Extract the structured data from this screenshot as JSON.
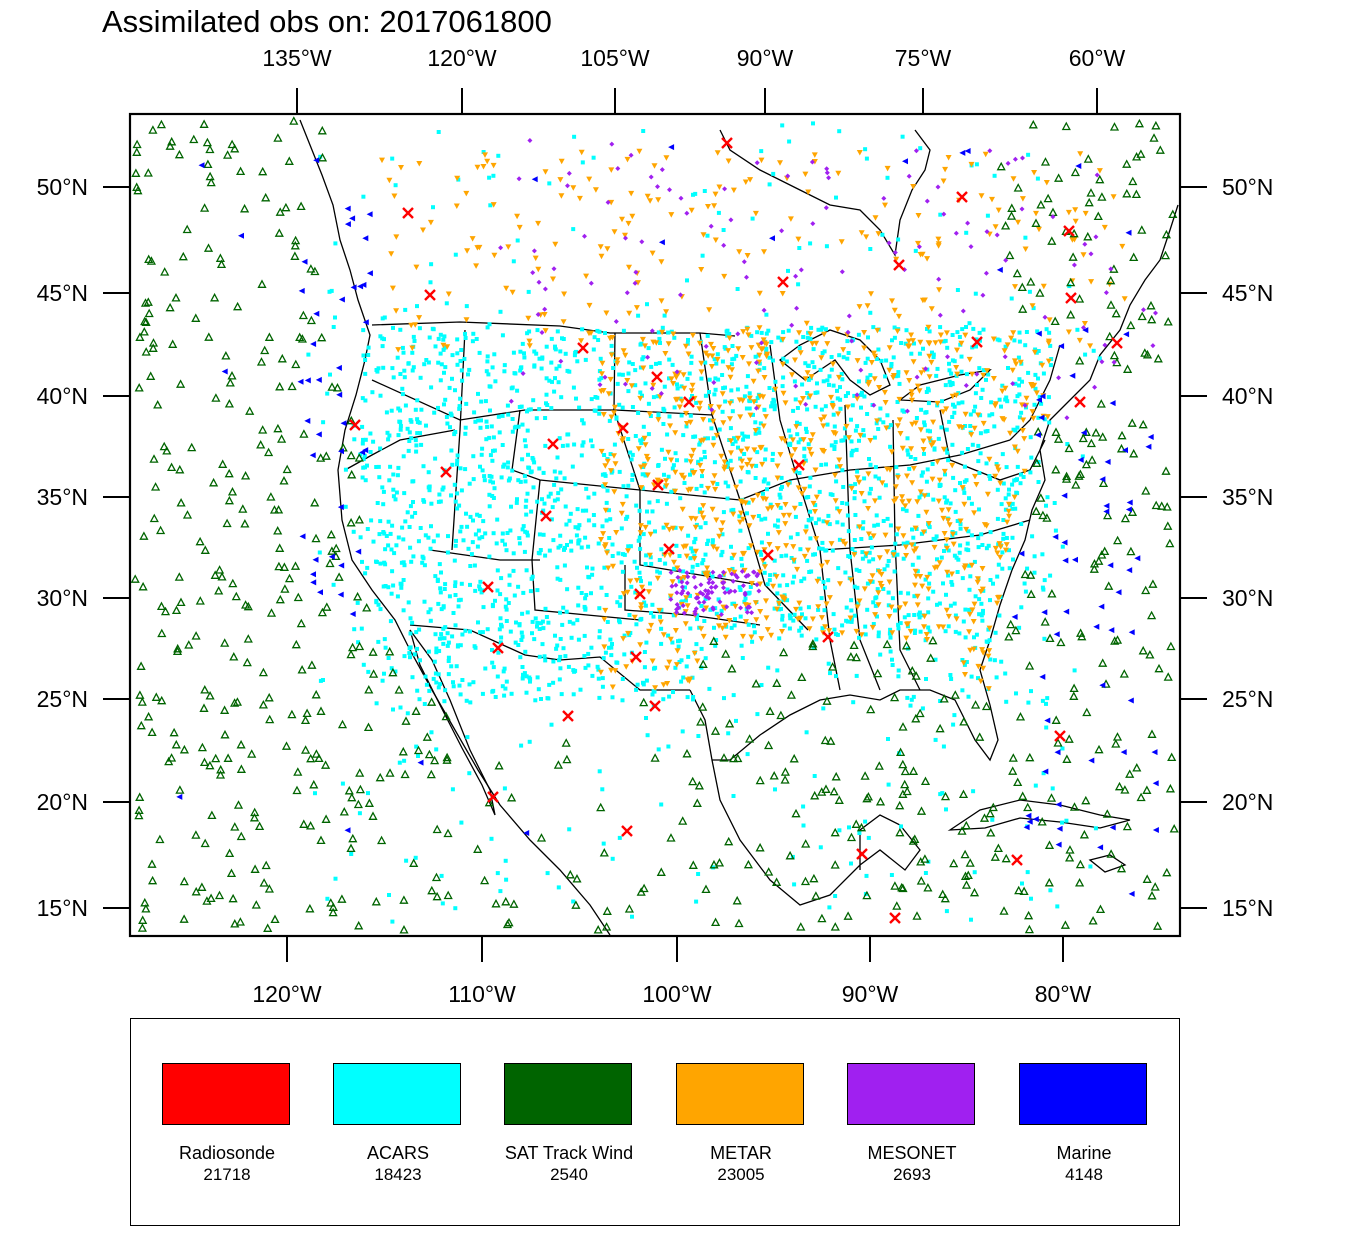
{
  "title": "Assimilated obs on: 2017061800",
  "top_lon_labels": [
    "135°W",
    "120°W",
    "105°W",
    "90°W",
    "75°W",
    "60°W"
  ],
  "bottom_lon_labels": [
    "120°W",
    "110°W",
    "100°W",
    "90°W",
    "80°W"
  ],
  "lat_labels": [
    "50°N",
    "45°N",
    "40°N",
    "35°N",
    "30°N",
    "25°N",
    "20°N",
    "15°N"
  ],
  "legend": [
    {
      "name": "Radiosonde",
      "count": "21718",
      "color": "#ff0000",
      "marker": "x"
    },
    {
      "name": "ACARS",
      "count": "18423",
      "color": "#00ffff",
      "marker": "square"
    },
    {
      "name": "SAT Track Wind",
      "count": "2540",
      "color": "#006400",
      "marker": "triangle-up"
    },
    {
      "name": "METAR",
      "count": "23005",
      "color": "#ffa500",
      "marker": "triangle-down"
    },
    {
      "name": "MESONET",
      "count": "2693",
      "color": "#a020f0",
      "marker": "diamond"
    },
    {
      "name": "Marine",
      "count": "4148",
      "color": "#0000ff",
      "marker": "triangle-left"
    }
  ]
}
